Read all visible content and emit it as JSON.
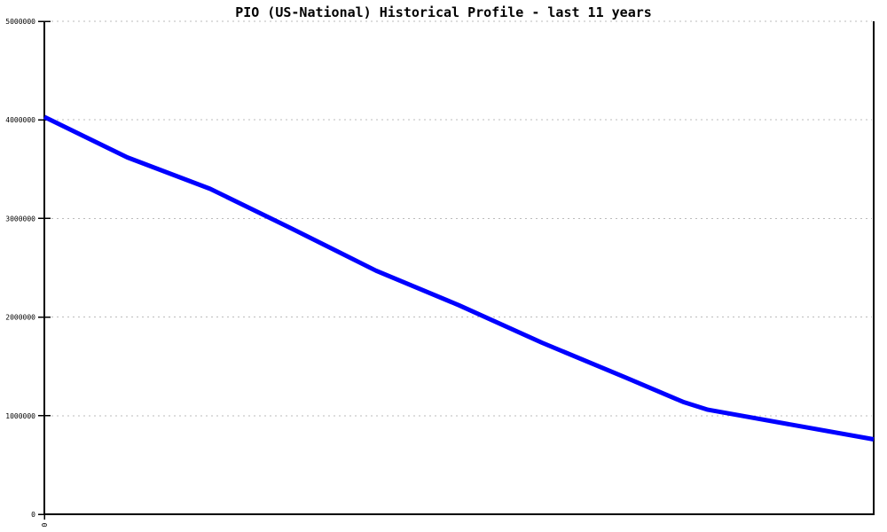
{
  "window": {
    "background": "#ffffff"
  },
  "chart_data": {
    "type": "line",
    "title": "PIO (US-National) Historical Profile - last 11 years",
    "title_color": "#000000",
    "x_axis": {
      "range": [
        0,
        10
      ],
      "tick_positions": [
        0
      ],
      "visible_tick_label": "0",
      "tick_label_rotation_deg": 90
    },
    "y_axis": {
      "range": [
        0,
        5000000
      ],
      "ticks": [
        {
          "value": 0,
          "label": "0"
        },
        {
          "value": 1000000,
          "label": "1000000"
        },
        {
          "value": 2000000,
          "label": "2000000"
        },
        {
          "value": 3000000,
          "label": "3000000"
        },
        {
          "value": 4000000,
          "label": "4000000"
        },
        {
          "value": 5000000,
          "label": "5000000"
        }
      ]
    },
    "grid": {
      "show": true,
      "style": "dotted",
      "color": "#bbbbbb"
    },
    "frame_color": "#000000",
    "legend": {
      "show": false
    },
    "series": [
      {
        "name": "PIO (US-National)",
        "color": "#0000ff",
        "stroke_width": 5,
        "points": [
          {
            "x": 0,
            "value": 4030000
          },
          {
            "x": 1,
            "value": 3620000
          },
          {
            "x": 2,
            "value": 3300000
          },
          {
            "x": 3,
            "value": 2890000
          },
          {
            "x": 4,
            "value": 2470000
          },
          {
            "x": 5,
            "value": 2120000
          },
          {
            "x": 6,
            "value": 1740000
          },
          {
            "x": 7,
            "value": 1390000
          },
          {
            "x": 7.7,
            "value": 1140000
          },
          {
            "x": 8,
            "value": 1060000
          },
          {
            "x": 9,
            "value": 910000
          },
          {
            "x": 10,
            "value": 760000
          }
        ]
      }
    ]
  }
}
